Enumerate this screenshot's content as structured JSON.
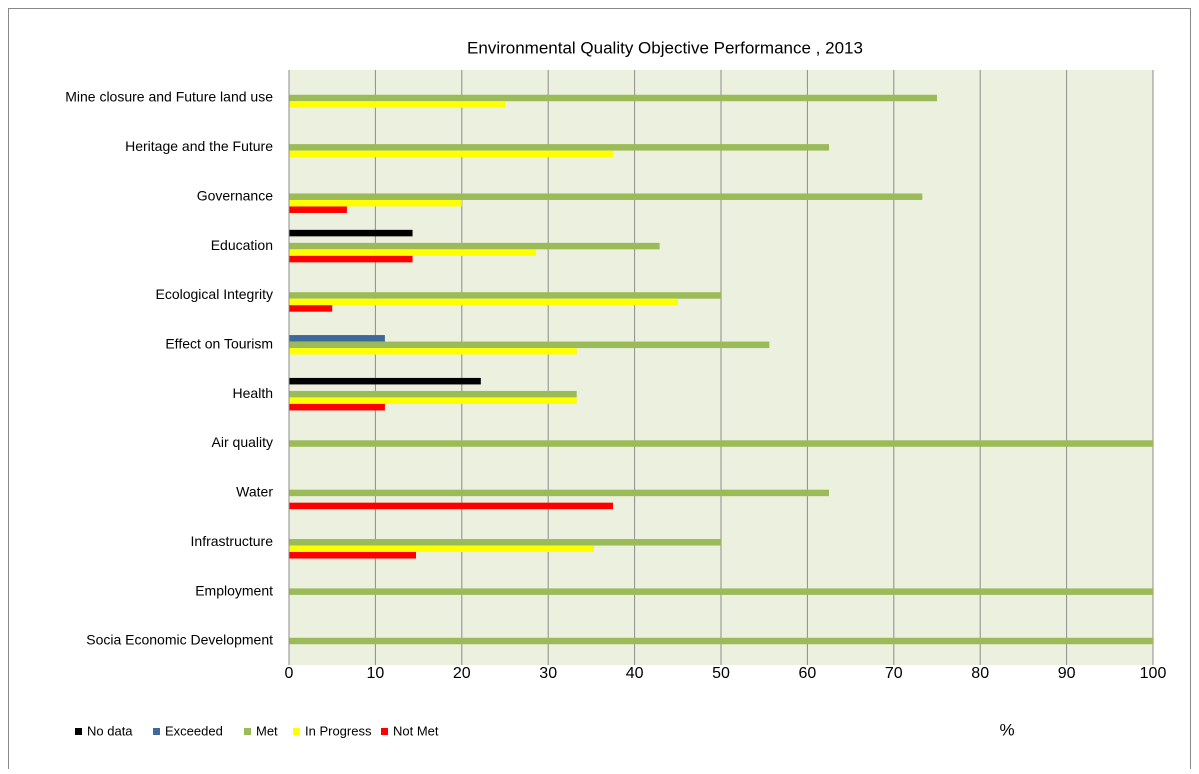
{
  "chart_data": {
    "type": "hbar",
    "title": "Environmental Quality Objective Performance , 2013",
    "x_label": "%",
    "categories": [
      "Mine closure and Future land use",
      "Heritage and the Future",
      "Governance",
      "Education",
      "Ecological Integrity",
      "Effect on Tourism",
      "Health",
      "Air quality",
      "Water",
      "Infrastructure",
      "Employment",
      "Socia Economic Development"
    ],
    "series": [
      {
        "name": "No data",
        "color": "#000000",
        "values": [
          0,
          0,
          0,
          14.3,
          0,
          0,
          22.2,
          0,
          0,
          0,
          0,
          0
        ]
      },
      {
        "name": "Exceeded",
        "color": "#3f689b",
        "values": [
          0,
          0,
          0,
          0,
          0,
          11.1,
          0,
          0,
          0,
          0,
          0,
          0
        ]
      },
      {
        "name": "Met",
        "color": "#9bbb59",
        "values": [
          75,
          62.5,
          73.3,
          42.9,
          50,
          55.6,
          33.3,
          100,
          62.5,
          50,
          100,
          100
        ]
      },
      {
        "name": "In Progress",
        "color": "#ffff00",
        "values": [
          25,
          37.5,
          20,
          28.6,
          45,
          33.3,
          33.3,
          0,
          0,
          35.3,
          0,
          0
        ]
      },
      {
        "name": "Not Met",
        "color": "#ff0000",
        "values": [
          0,
          0,
          6.7,
          14.3,
          5,
          0,
          11.1,
          0,
          37.5,
          14.7,
          0,
          0
        ]
      }
    ],
    "xlim": [
      0,
      100
    ],
    "xticks": [
      0,
      10,
      20,
      30,
      40,
      50,
      60,
      70,
      80,
      90,
      100
    ],
    "grid": true,
    "legend": "bottom-left",
    "plot_background": "#ebf1de"
  }
}
